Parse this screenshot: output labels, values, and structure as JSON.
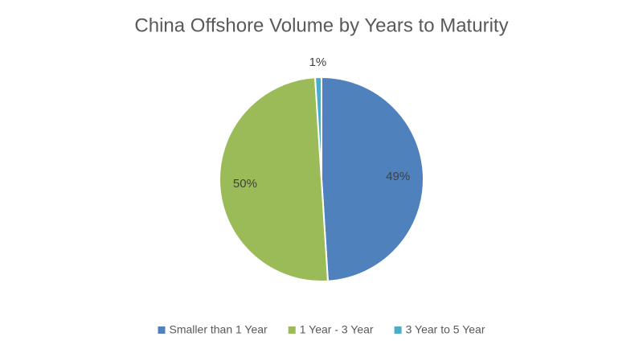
{
  "chart_data": {
    "type": "pie",
    "title": "China Offshore Volume by Years to Maturity",
    "categories": [
      "Smaller than 1 Year",
      "1 Year - 3 Year",
      "3 Year to 5 Year"
    ],
    "values": [
      49,
      50,
      1
    ],
    "value_labels": [
      "49%",
      "50%",
      "1%"
    ],
    "colors": [
      "#4f81bd",
      "#9bbb59",
      "#4bacc6"
    ],
    "legend": "bottom"
  }
}
